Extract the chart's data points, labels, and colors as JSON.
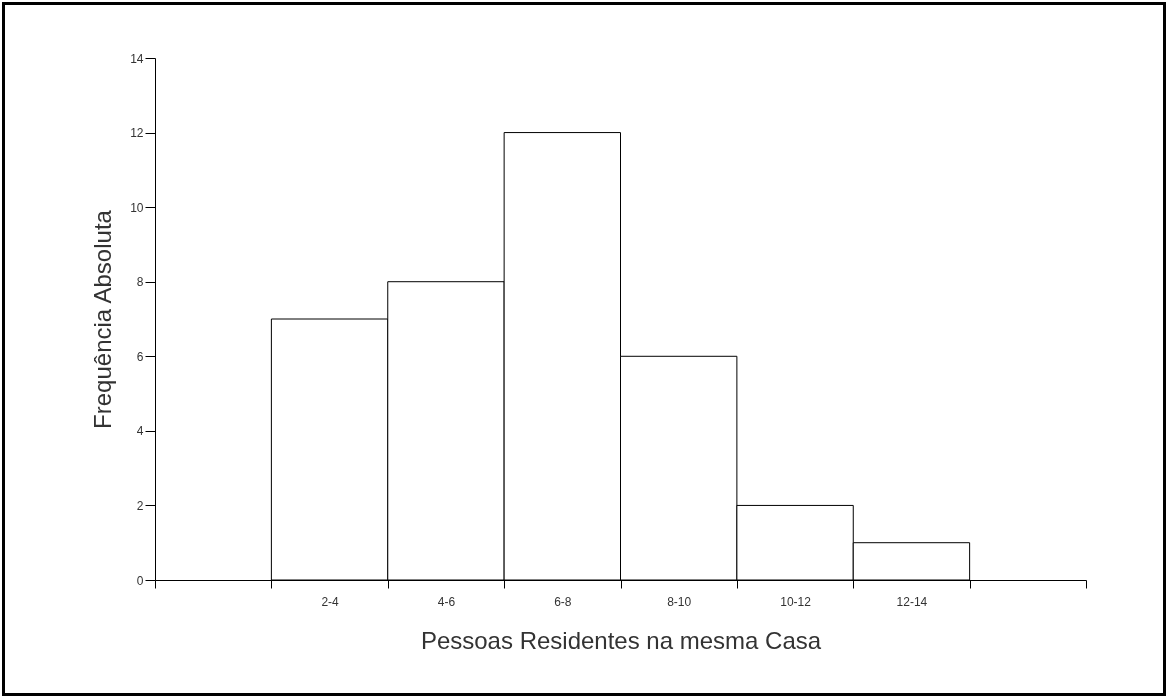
{
  "chart_data": {
    "type": "bar",
    "xlabel": "Pessoas Residentes na mesma Casa",
    "ylabel": "Frequência Absoluta",
    "categories": [
      null,
      "2-4",
      "4-6",
      "6-8",
      "8-10",
      "10-12",
      "12-14",
      null
    ],
    "values": [
      null,
      7,
      8,
      12,
      6,
      2,
      1,
      null
    ],
    "color": "#ffffff",
    "ylim": [
      0,
      14
    ],
    "yticks": [
      0,
      2,
      4,
      6,
      8,
      10,
      12,
      14
    ]
  }
}
